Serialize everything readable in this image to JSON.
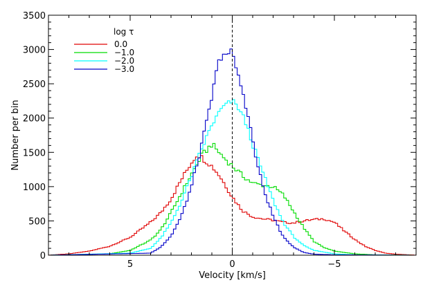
{
  "chart_data": {
    "type": "line",
    "title": "",
    "xlabel": "Velocity [km/s]",
    "ylabel": "Number per bin",
    "xlim": [
      9,
      -9
    ],
    "ylim": [
      0,
      3500
    ],
    "x_axis_reversed": true,
    "x_ticks": [
      5,
      0,
      -5
    ],
    "x_tick_labels": [
      "5",
      "0",
      "−5"
    ],
    "y_ticks": [
      0,
      500,
      1000,
      1500,
      2000,
      2500,
      3000,
      3500
    ],
    "y_tick_labels": [
      "0",
      "500",
      "1000",
      "1500",
      "2000",
      "2500",
      "3000",
      "3500"
    ],
    "grid": false,
    "step_style": true,
    "reference_line": {
      "x": 0,
      "style": "dashed"
    },
    "legend": {
      "title": "log τ",
      "placement": "top-left"
    },
    "series": [
      {
        "name": "0.0",
        "color": "#e00000",
        "x": [
          9.0,
          8.0,
          7.0,
          6.0,
          5.0,
          4.0,
          3.5,
          3.0,
          2.5,
          2.0,
          1.7,
          1.4,
          1.0,
          0.6,
          0.3,
          0.0,
          -0.5,
          -1.0,
          -1.5,
          -2.0,
          -2.5,
          -3.0,
          -3.5,
          -4.0,
          -4.5,
          -5.0,
          -5.5,
          -6.0,
          -6.5,
          -7.0,
          -7.5,
          -8.0,
          -9.0
        ],
        "values": [
          0,
          20,
          60,
          130,
          260,
          480,
          620,
          820,
          1100,
          1350,
          1480,
          1400,
          1300,
          1150,
          1000,
          850,
          650,
          560,
          530,
          510,
          480,
          470,
          500,
          520,
          530,
          480,
          350,
          230,
          130,
          70,
          30,
          15,
          0
        ]
      },
      {
        "name": "−1.0",
        "color": "#00dc00",
        "x": [
          9.0,
          6.0,
          5.0,
          4.0,
          3.5,
          3.0,
          2.5,
          2.0,
          1.5,
          1.0,
          0.5,
          0.0,
          -0.5,
          -1.0,
          -1.5,
          -2.0,
          -2.5,
          -3.0,
          -3.5,
          -4.0,
          -4.5,
          -5.0,
          -6.0,
          -7.0,
          -9.0
        ],
        "values": [
          0,
          20,
          70,
          220,
          370,
          620,
          900,
          1180,
          1450,
          1620,
          1450,
          1300,
          1160,
          1050,
          1020,
          1000,
          880,
          640,
          400,
          200,
          110,
          60,
          20,
          5,
          0
        ]
      },
      {
        "name": "−2.0",
        "color": "#00ffff",
        "x": [
          9.0,
          5.0,
          4.0,
          3.5,
          3.0,
          2.5,
          2.0,
          1.5,
          1.0,
          0.5,
          0.0,
          -0.3,
          -0.6,
          -1.0,
          -1.5,
          -2.0,
          -2.5,
          -3.0,
          -3.5,
          -4.0,
          -5.0,
          -6.0,
          -9.0
        ],
        "values": [
          0,
          30,
          100,
          250,
          470,
          780,
          1150,
          1550,
          1900,
          2150,
          2250,
          2150,
          1980,
          1620,
          1200,
          800,
          480,
          270,
          140,
          70,
          20,
          5,
          0
        ]
      },
      {
        "name": "−3.0",
        "color": "#0000c8",
        "x": [
          9.0,
          4.0,
          3.5,
          3.0,
          2.5,
          2.0,
          1.5,
          1.0,
          0.7,
          0.4,
          0.2,
          0.0,
          -0.2,
          -0.5,
          -0.8,
          -1.2,
          -1.6,
          -2.0,
          -2.5,
          -3.0,
          -3.5,
          -4.0,
          -5.0,
          -9.0
        ],
        "values": [
          0,
          30,
          120,
          280,
          560,
          1000,
          1600,
          2300,
          2800,
          2960,
          2900,
          3000,
          2700,
          2400,
          2000,
          1350,
          900,
          570,
          260,
          120,
          40,
          15,
          5,
          0
        ]
      }
    ]
  }
}
